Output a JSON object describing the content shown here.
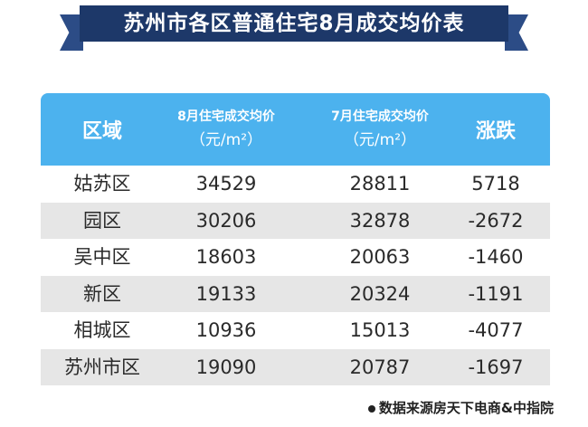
{
  "header": {
    "title": "苏州市各区普通住宅8月成交均价表"
  },
  "table": {
    "columns": [
      {
        "line1": "区域"
      },
      {
        "line1": "8月住宅成交均价",
        "line2": "（元/m²）"
      },
      {
        "line1": "7月住宅成交均价",
        "line2": "（元/m²）"
      },
      {
        "line1": "涨跌"
      }
    ],
    "rows": [
      [
        "姑苏区",
        34529,
        28811,
        5718
      ],
      [
        "园区",
        30206,
        32878,
        -2672
      ],
      [
        "吴中区",
        18603,
        20063,
        -1460
      ],
      [
        "新区",
        19133,
        20324,
        -1191
      ],
      [
        "相城区",
        10936,
        15013,
        -4077
      ],
      [
        "苏州市区",
        19090,
        20787,
        -1697
      ]
    ]
  },
  "footer": {
    "source": "数据来源房天下电商&中指院"
  }
}
